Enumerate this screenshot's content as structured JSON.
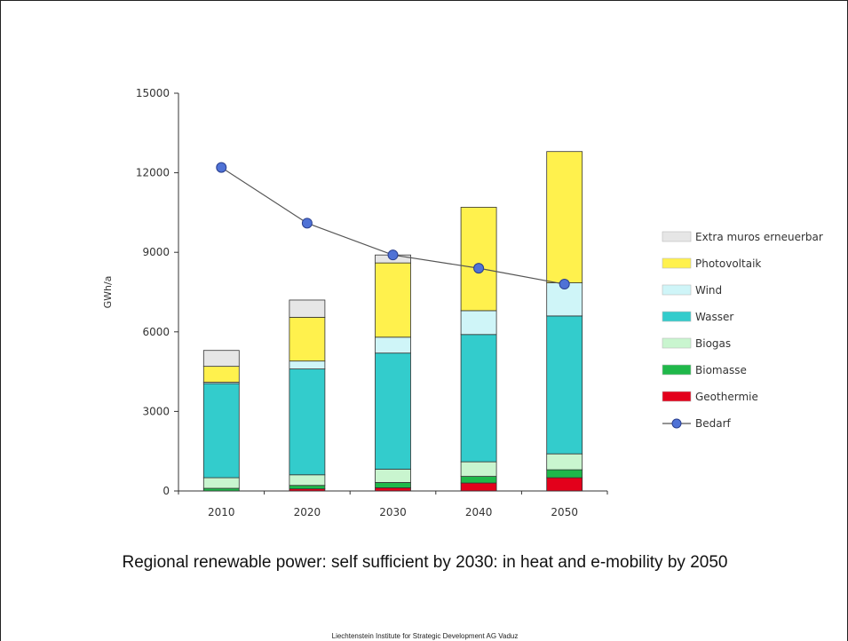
{
  "caption": "Regional renewable power: self sufficient by 2030: in heat and e-mobility by 2050",
  "footer": "Liechtenstein Institute for Strategic Development AG Vaduz",
  "chart_data": {
    "type": "bar",
    "stacked": true,
    "title": "",
    "xlabel": "",
    "ylabel": "GWh/a",
    "ylim": [
      0,
      15000
    ],
    "yticks": [
      0,
      3000,
      6000,
      9000,
      12000,
      15000
    ],
    "categories": [
      "2010",
      "2020",
      "2030",
      "2040",
      "2050"
    ],
    "legend_position": "right",
    "series": [
      {
        "name": "Geothermie",
        "kind": "bar",
        "color": "#e3001b",
        "values": [
          0,
          80,
          120,
          300,
          500
        ]
      },
      {
        "name": "Biomasse",
        "kind": "bar",
        "color": "#1fb84a",
        "values": [
          100,
          130,
          200,
          250,
          300
        ]
      },
      {
        "name": "Biogas",
        "kind": "bar",
        "color": "#c9f5cf",
        "values": [
          400,
          400,
          500,
          550,
          600
        ]
      },
      {
        "name": "Wasser",
        "kind": "bar",
        "color": "#33cccc",
        "values": [
          3550,
          3990,
          4380,
          4800,
          5200
        ]
      },
      {
        "name": "Wind",
        "kind": "bar",
        "color": "#cff5f8",
        "values": [
          50,
          300,
          600,
          900,
          1250
        ]
      },
      {
        "name": "Photovoltaik",
        "kind": "bar",
        "color": "#fff14d",
        "values": [
          600,
          1650,
          2800,
          3900,
          4950
        ]
      },
      {
        "name": "Extra muros erneuerbar",
        "kind": "bar",
        "color": "#e6e6e6",
        "values": [
          600,
          650,
          300,
          0,
          0
        ]
      },
      {
        "name": "Bedarf",
        "kind": "line",
        "color": "#4f72d6",
        "values": [
          12200,
          10100,
          8900,
          8400,
          7800
        ]
      }
    ],
    "legend_order": [
      "Extra muros erneuerbar",
      "Photovoltaik",
      "Wind",
      "Wasser",
      "Biogas",
      "Biomasse",
      "Geothermie",
      "Bedarf"
    ]
  }
}
